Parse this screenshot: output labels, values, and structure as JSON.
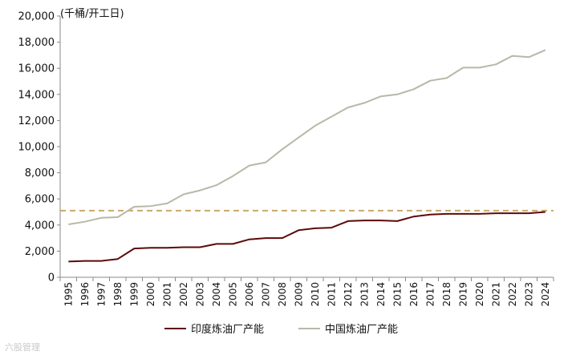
{
  "chart_data": {
    "type": "line",
    "ylabel": "(千桶/开工日)",
    "x": [
      "1995",
      "1996",
      "1997",
      "1998",
      "1999",
      "2000",
      "2001",
      "2002",
      "2003",
      "2004",
      "2005",
      "2006",
      "2007",
      "2008",
      "2009",
      "2010",
      "2011",
      "2012",
      "2013",
      "2014",
      "2015",
      "2016",
      "2017",
      "2018",
      "2019",
      "2020",
      "2021",
      "2022",
      "2023",
      "2024"
    ],
    "ylim": [
      0,
      20000
    ],
    "yticks": [
      0,
      2000,
      4000,
      6000,
      8000,
      10000,
      12000,
      14000,
      16000,
      18000,
      20000
    ],
    "ytick_labels": [
      "0",
      "2,000",
      "4,000",
      "6,000",
      "8,000",
      "10,000",
      "12,000",
      "14,000",
      "16,000",
      "18,000",
      "20,000"
    ],
    "series": [
      {
        "name": "印度炼油厂产能",
        "color": "#5c0a0a",
        "values": [
          1200,
          1250,
          1250,
          1400,
          2200,
          2250,
          2250,
          2300,
          2300,
          2550,
          2550,
          2900,
          3000,
          3000,
          3600,
          3750,
          3800,
          4300,
          4350,
          4350,
          4300,
          4650,
          4800,
          4850,
          4850,
          4850,
          4900,
          4900,
          4900,
          5000
        ]
      },
      {
        "name": "中国炼油厂产能",
        "color": "#b8b8a8",
        "values": [
          4050,
          4250,
          4550,
          4600,
          5400,
          5450,
          5650,
          6350,
          6650,
          7050,
          7750,
          8550,
          8800,
          9800,
          10700,
          11600,
          12300,
          13000,
          13350,
          13850,
          14000,
          14400,
          15050,
          15250,
          16050,
          16050,
          16300,
          16950,
          16850,
          17400
        ]
      }
    ],
    "reference_line": {
      "value": 5100,
      "color": "#c9a969",
      "style": "dashed"
    },
    "grid": false,
    "legend": "bottom"
  },
  "watermark": "六股管理"
}
